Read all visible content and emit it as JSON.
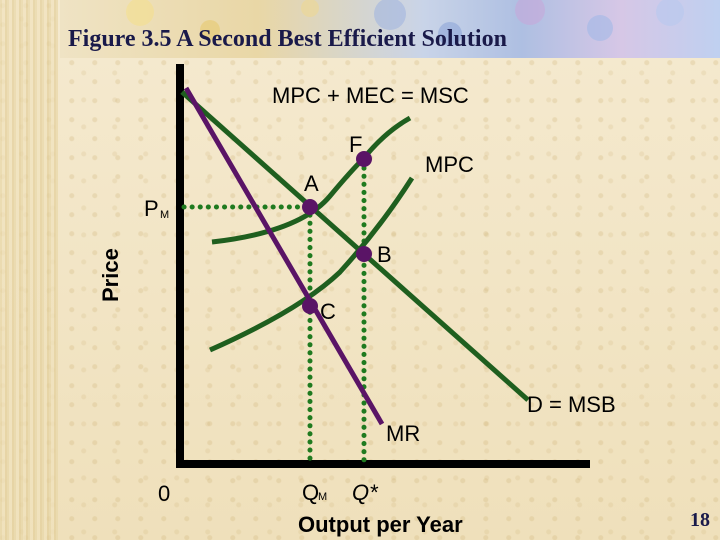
{
  "slide": {
    "title": "Figure 3.5 A Second Best Efficient Solution",
    "number": "18"
  },
  "diagram": {
    "y_axis_label": "Price",
    "x_axis_label": "Output per Year",
    "origin_label": "0",
    "msc_label": "MPC + MEC = MSC",
    "mpc_label": "MPC",
    "demand_label": "D = MSB",
    "mr_label": "MR",
    "point_a": "A",
    "point_b": "B",
    "point_c": "C",
    "point_f": "F",
    "price_label_main": "P",
    "price_label_sub": "M",
    "qm_label_main": "Q",
    "qm_label_sub": "M",
    "qstar_label": "Q*"
  },
  "colors": {
    "curve_green": "#1f5f1f",
    "mr_purple": "#5a1466",
    "point_purple": "#5a1466",
    "axis": "#000000",
    "title": "#1a1a4a"
  }
}
